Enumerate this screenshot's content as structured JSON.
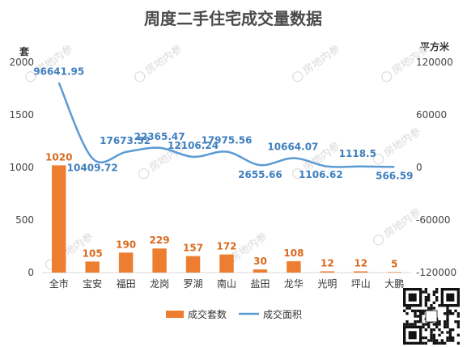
{
  "chart_data": {
    "type": "bar",
    "title": "周度二手住宅成交量数据",
    "left_axis": {
      "unit": "套",
      "ticks": [
        0,
        500,
        1000,
        1500,
        2000
      ],
      "ylim": [
        0,
        2000
      ]
    },
    "right_axis": {
      "unit": "平方米",
      "ticks": [
        -120000,
        -60000,
        0,
        60000,
        120000
      ],
      "ylim": [
        -120000,
        120000
      ]
    },
    "categories": [
      "全市",
      "宝安",
      "福田",
      "龙岗",
      "罗湖",
      "南山",
      "盐田",
      "龙华",
      "光明",
      "坪山",
      "大鹏"
    ],
    "series": [
      {
        "name": "成交套数",
        "type": "bar",
        "axis": "left",
        "color": "#ed7d31",
        "values": [
          1020,
          105,
          190,
          229,
          157,
          172,
          30,
          108,
          12,
          12,
          5
        ],
        "labels": [
          "1020",
          "105",
          "190",
          "229",
          "157",
          "172",
          "30",
          "108",
          "12",
          "12",
          "5"
        ]
      },
      {
        "name": "成交面积",
        "type": "line",
        "axis": "right",
        "color": "#5b9bd5",
        "values": [
          96641.95,
          10409.72,
          17673.52,
          22365.47,
          12106.24,
          17975.56,
          2655.66,
          10664.07,
          1106.62,
          1118.5,
          566.59
        ],
        "labels": [
          "96641.95",
          "10409.72",
          "17673.52",
          "22365.47",
          "12106.24",
          "17975.56",
          "2655.66",
          "10664.07",
          "1106.62",
          "1118.5",
          "566.59"
        ]
      }
    ],
    "legend_position": "bottom",
    "grid": false
  },
  "watermark_text": "房地内参"
}
